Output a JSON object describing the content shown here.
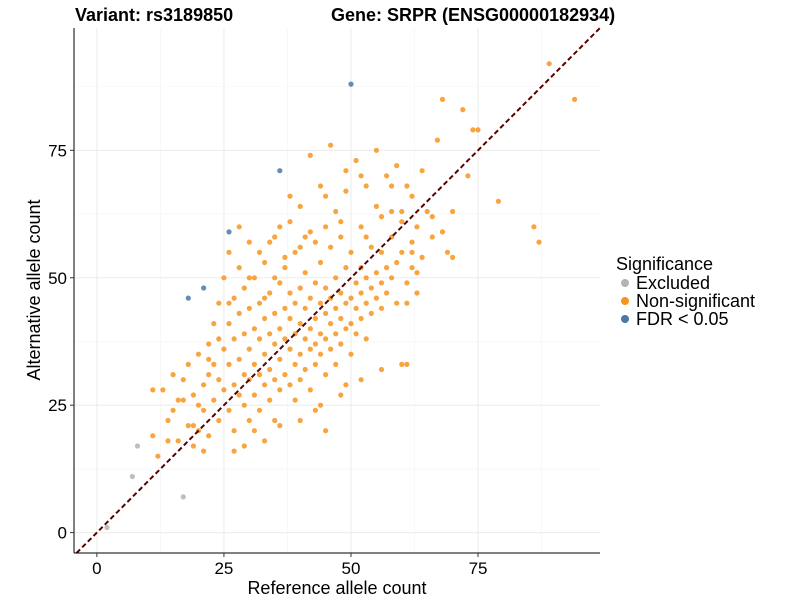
{
  "chart_data": {
    "type": "scatter",
    "title_left": "Variant: rs3189850",
    "title_right": "Gene: SRPR (ENSG00000182934)",
    "xlabel": "Reference allele count",
    "ylabel": "Alternative allele count",
    "xlim": [
      -4.5,
      99
    ],
    "ylim": [
      -4,
      99
    ],
    "xticks": [
      0,
      25,
      50,
      75
    ],
    "yticks": [
      0,
      25,
      50,
      75
    ],
    "reference_line": {
      "slope": 1,
      "intercept": 0,
      "style": "dashed",
      "color": "#5a0000"
    },
    "legend": {
      "title": "Significance",
      "position": "right",
      "items": [
        {
          "label": "Excluded",
          "color": "#b3b3b3"
        },
        {
          "label": "Non-significant",
          "color": "#f7941d"
        },
        {
          "label": "FDR < 0.05",
          "color": "#4a78a8"
        }
      ]
    },
    "series": [
      {
        "name": "Excluded",
        "color": "#b3b3b3",
        "points": [
          [
            2,
            1
          ],
          [
            7,
            11
          ],
          [
            8,
            17
          ],
          [
            17,
            7
          ]
        ]
      },
      {
        "name": "FDR < 0.05",
        "color": "#4a78a8",
        "points": [
          [
            18,
            46
          ],
          [
            21,
            48
          ],
          [
            26,
            59
          ],
          [
            36,
            71
          ],
          [
            50,
            88
          ]
        ]
      },
      {
        "name": "Non-significant",
        "color": "#f7941d",
        "points": [
          [
            11,
            28
          ],
          [
            11,
            19
          ],
          [
            12,
            15
          ],
          [
            13,
            28
          ],
          [
            14,
            22
          ],
          [
            15,
            31
          ],
          [
            15,
            24
          ],
          [
            16,
            18
          ],
          [
            17,
            26
          ],
          [
            17,
            30
          ],
          [
            18,
            21
          ],
          [
            18,
            33
          ],
          [
            19,
            27
          ],
          [
            19,
            17
          ],
          [
            20,
            20
          ],
          [
            20,
            35
          ],
          [
            21,
            29
          ],
          [
            21,
            24
          ],
          [
            21,
            16
          ],
          [
            22,
            37
          ],
          [
            22,
            31
          ],
          [
            22,
            19
          ],
          [
            23,
            41
          ],
          [
            23,
            26
          ],
          [
            23,
            33
          ],
          [
            24,
            22
          ],
          [
            24,
            45
          ],
          [
            24,
            30
          ],
          [
            25,
            36
          ],
          [
            25,
            28
          ],
          [
            25,
            50
          ],
          [
            26,
            24
          ],
          [
            26,
            33
          ],
          [
            26,
            41
          ],
          [
            26,
            55
          ],
          [
            27,
            29
          ],
          [
            27,
            38
          ],
          [
            27,
            46
          ],
          [
            27,
            20
          ],
          [
            28,
            34
          ],
          [
            28,
            27
          ],
          [
            28,
            43
          ],
          [
            28,
            52
          ],
          [
            29,
            31
          ],
          [
            29,
            39
          ],
          [
            29,
            25
          ],
          [
            29,
            48
          ],
          [
            30,
            36
          ],
          [
            30,
            30
          ],
          [
            30,
            44
          ],
          [
            30,
            57
          ],
          [
            30,
            22
          ],
          [
            31,
            33
          ],
          [
            31,
            40
          ],
          [
            31,
            27
          ],
          [
            31,
            50
          ],
          [
            32,
            38
          ],
          [
            32,
            31
          ],
          [
            32,
            45
          ],
          [
            32,
            24
          ],
          [
            33,
            35
          ],
          [
            33,
            42
          ],
          [
            33,
            29
          ],
          [
            33,
            53
          ],
          [
            34,
            39
          ],
          [
            34,
            32
          ],
          [
            34,
            47
          ],
          [
            34,
            26
          ],
          [
            35,
            37
          ],
          [
            35,
            43
          ],
          [
            35,
            30
          ],
          [
            35,
            58
          ],
          [
            35,
            22
          ],
          [
            36,
            40
          ],
          [
            36,
            34
          ],
          [
            36,
            49
          ],
          [
            36,
            28
          ],
          [
            37,
            38
          ],
          [
            37,
            44
          ],
          [
            37,
            31
          ],
          [
            37,
            54
          ],
          [
            38,
            36
          ],
          [
            38,
            42
          ],
          [
            38,
            29
          ],
          [
            38,
            47
          ],
          [
            38,
            61
          ],
          [
            39,
            39
          ],
          [
            39,
            33
          ],
          [
            39,
            45
          ],
          [
            39,
            26
          ],
          [
            40,
            41
          ],
          [
            40,
            35
          ],
          [
            40,
            48
          ],
          [
            40,
            30
          ],
          [
            40,
            56
          ],
          [
            41,
            38
          ],
          [
            41,
            44
          ],
          [
            41,
            32
          ],
          [
            41,
            51
          ],
          [
            42,
            40
          ],
          [
            42,
            36
          ],
          [
            42,
            46
          ],
          [
            42,
            28
          ],
          [
            42,
            59
          ],
          [
            43,
            42
          ],
          [
            43,
            37
          ],
          [
            43,
            49
          ],
          [
            43,
            33
          ],
          [
            44,
            39
          ],
          [
            44,
            45
          ],
          [
            44,
            35
          ],
          [
            44,
            53
          ],
          [
            44,
            25
          ],
          [
            45,
            43
          ],
          [
            45,
            38
          ],
          [
            45,
            48
          ],
          [
            45,
            31
          ],
          [
            45,
            66
          ],
          [
            46,
            41
          ],
          [
            46,
            46
          ],
          [
            46,
            36
          ],
          [
            46,
            56
          ],
          [
            47,
            44
          ],
          [
            47,
            39
          ],
          [
            47,
            50
          ],
          [
            47,
            33
          ],
          [
            48,
            42
          ],
          [
            48,
            47
          ],
          [
            48,
            37
          ],
          [
            48,
            61
          ],
          [
            49,
            45
          ],
          [
            49,
            40
          ],
          [
            49,
            52
          ],
          [
            49,
            29
          ],
          [
            50,
            46
          ],
          [
            50,
            41
          ],
          [
            50,
            55
          ],
          [
            50,
            35
          ],
          [
            51,
            44
          ],
          [
            51,
            49
          ],
          [
            51,
            39
          ],
          [
            52,
            47
          ],
          [
            52,
            52
          ],
          [
            52,
            42
          ],
          [
            52,
            60
          ],
          [
            53,
            45
          ],
          [
            53,
            50
          ],
          [
            53,
            38
          ],
          [
            54,
            48
          ],
          [
            54,
            43
          ],
          [
            54,
            56
          ],
          [
            55,
            46
          ],
          [
            55,
            51
          ],
          [
            55,
            64
          ],
          [
            56,
            49
          ],
          [
            56,
            44
          ],
          [
            56,
            55
          ],
          [
            57,
            52
          ],
          [
            57,
            47
          ],
          [
            58,
            50
          ],
          [
            58,
            58
          ],
          [
            59,
            53
          ],
          [
            59,
            45
          ],
          [
            60,
            55
          ],
          [
            60,
            61
          ],
          [
            61,
            49
          ],
          [
            61,
            33
          ],
          [
            62,
            57
          ],
          [
            62,
            52
          ],
          [
            63,
            60
          ],
          [
            63,
            47
          ],
          [
            64,
            54
          ],
          [
            65,
            63
          ],
          [
            66,
            58
          ],
          [
            67,
            77
          ],
          [
            68,
            85
          ],
          [
            69,
            55
          ],
          [
            70,
            63
          ],
          [
            72,
            83
          ],
          [
            73,
            70
          ],
          [
            74,
            79
          ],
          [
            75,
            79
          ],
          [
            79,
            65
          ],
          [
            86,
            60
          ],
          [
            87,
            57
          ],
          [
            89,
            92
          ],
          [
            94,
            85
          ],
          [
            34,
            57
          ],
          [
            38,
            66
          ],
          [
            42,
            74
          ],
          [
            46,
            76
          ],
          [
            49,
            71
          ],
          [
            55,
            75
          ],
          [
            58,
            68
          ],
          [
            60,
            63
          ],
          [
            62,
            66
          ],
          [
            52,
            70
          ],
          [
            30,
            50
          ],
          [
            26,
            45
          ],
          [
            24,
            38
          ],
          [
            22,
            34
          ],
          [
            20,
            25
          ],
          [
            19,
            21
          ],
          [
            16,
            26
          ],
          [
            14,
            18
          ],
          [
            27,
            16
          ],
          [
            29,
            17
          ],
          [
            33,
            18
          ],
          [
            36,
            21
          ],
          [
            40,
            22
          ],
          [
            43,
            24
          ],
          [
            48,
            27
          ],
          [
            52,
            30
          ],
          [
            56,
            32
          ],
          [
            60,
            33
          ],
          [
            45,
            20
          ],
          [
            31,
            20
          ],
          [
            33,
            46
          ],
          [
            35,
            50
          ],
          [
            37,
            52
          ],
          [
            39,
            55
          ],
          [
            41,
            58
          ],
          [
            43,
            57
          ],
          [
            45,
            60
          ],
          [
            47,
            63
          ],
          [
            49,
            67
          ],
          [
            51,
            73
          ],
          [
            53,
            68
          ],
          [
            57,
            70
          ],
          [
            59,
            72
          ],
          [
            61,
            68
          ],
          [
            64,
            71
          ],
          [
            66,
            62
          ],
          [
            68,
            59
          ],
          [
            70,
            54
          ],
          [
            63,
            51
          ],
          [
            61,
            45
          ],
          [
            28,
            60
          ],
          [
            32,
            55
          ],
          [
            36,
            60
          ],
          [
            40,
            64
          ],
          [
            44,
            68
          ],
          [
            48,
            58
          ],
          [
            53,
            58
          ],
          [
            56,
            62
          ],
          [
            58,
            63
          ],
          [
            62,
            55
          ]
        ]
      }
    ]
  }
}
